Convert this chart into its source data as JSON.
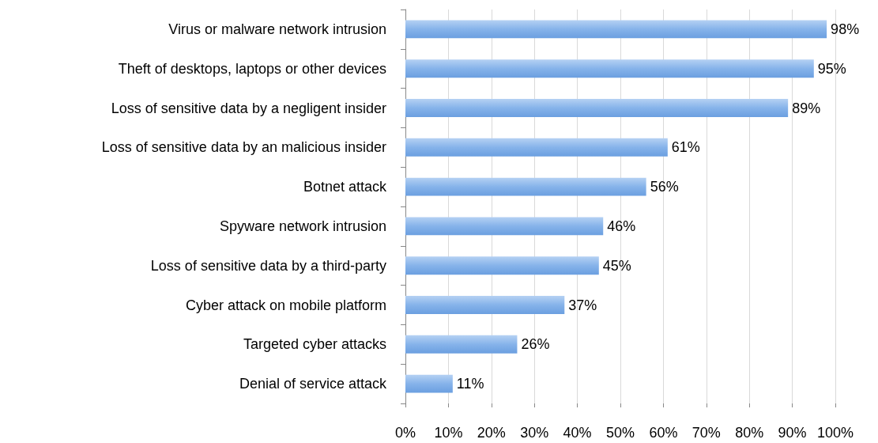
{
  "chart_data": {
    "type": "bar",
    "orientation": "horizontal",
    "categories": [
      "Virus or malware network intrusion",
      "Theft of desktops, laptops or other devices",
      "Loss of sensitive data by a negligent insider",
      "Loss of sensitive data by an malicious insider",
      "Botnet attack",
      "Spyware network intrusion",
      "Loss of sensitive data by a third-party",
      "Cyber attack on mobile platform",
      "Targeted cyber attacks",
      "Denial of service attack"
    ],
    "values": [
      98,
      95,
      89,
      61,
      56,
      46,
      45,
      37,
      26,
      11
    ],
    "value_labels": [
      "98%",
      "95%",
      "89%",
      "61%",
      "56%",
      "46%",
      "45%",
      "37%",
      "26%",
      "11%"
    ],
    "color": "#86b3ea",
    "xlim": [
      0,
      100
    ],
    "xticks": [
      {
        "value": 0,
        "label": "0%"
      },
      {
        "value": 10,
        "label": "10%"
      },
      {
        "value": 20,
        "label": "20%"
      },
      {
        "value": 30,
        "label": "30%"
      },
      {
        "value": 40,
        "label": "40%"
      },
      {
        "value": 50,
        "label": "50%"
      },
      {
        "value": 60,
        "label": "60%"
      },
      {
        "value": 70,
        "label": "70%"
      },
      {
        "value": 80,
        "label": "80%"
      },
      {
        "value": 90,
        "label": "90%"
      },
      {
        "value": 100,
        "label": "100%"
      }
    ],
    "grid": "x"
  }
}
